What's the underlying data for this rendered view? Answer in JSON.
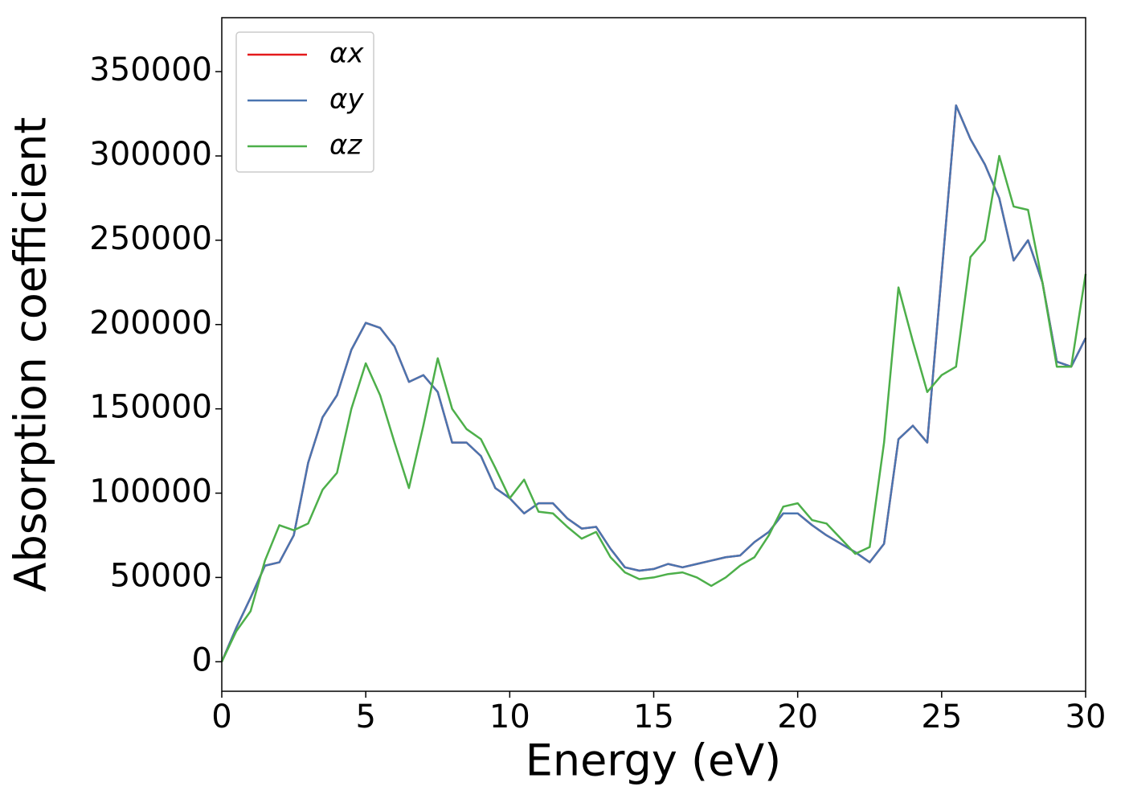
{
  "chart_data": {
    "type": "line",
    "xlabel": "Energy (eV)",
    "ylabel": "Absorption coefficient",
    "x": [
      0,
      0.5,
      1,
      1.5,
      2,
      2.5,
      3,
      3.5,
      4,
      4.5,
      5,
      5.5,
      6,
      6.5,
      7,
      7.5,
      8,
      8.5,
      9,
      9.5,
      10,
      10.5,
      11,
      11.5,
      12,
      12.5,
      13,
      13.5,
      14,
      14.5,
      15,
      15.5,
      16,
      16.5,
      17,
      17.5,
      18,
      18.5,
      19,
      19.5,
      20,
      20.5,
      21,
      21.5,
      22,
      22.5,
      23,
      23.5,
      24,
      24.5,
      25,
      25.5,
      26,
      26.5,
      27,
      27.5,
      28,
      28.5,
      29,
      29.5,
      30
    ],
    "series": [
      {
        "name": "αx",
        "color": "#e41a1c",
        "values": [
          0,
          20000,
          38000,
          57000,
          59000,
          75000,
          118000,
          145000,
          158000,
          185000,
          201000,
          198000,
          187000,
          166000,
          170000,
          160000,
          130000,
          130000,
          122000,
          103000,
          97000,
          88000,
          94000,
          94000,
          85000,
          79000,
          80000,
          67000,
          56000,
          54000,
          55000,
          58000,
          56000,
          58000,
          60000,
          62000,
          63000,
          71000,
          77000,
          88000,
          88000,
          81000,
          75000,
          70000,
          65000,
          59000,
          70000,
          132000,
          140000,
          130000,
          230000,
          330000,
          310000,
          295000,
          275000,
          238000,
          250000,
          225000,
          178000,
          175000,
          192000
        ]
      },
      {
        "name": "αy",
        "color": "#4a75b0",
        "values": [
          0,
          20000,
          38000,
          57000,
          59000,
          75000,
          118000,
          145000,
          158000,
          185000,
          201000,
          198000,
          187000,
          166000,
          170000,
          160000,
          130000,
          130000,
          122000,
          103000,
          97000,
          88000,
          94000,
          94000,
          85000,
          79000,
          80000,
          67000,
          56000,
          54000,
          55000,
          58000,
          56000,
          58000,
          60000,
          62000,
          63000,
          71000,
          77000,
          88000,
          88000,
          81000,
          75000,
          70000,
          65000,
          59000,
          70000,
          132000,
          140000,
          130000,
          230000,
          330000,
          310000,
          295000,
          275000,
          238000,
          250000,
          225000,
          178000,
          175000,
          192000
        ]
      },
      {
        "name": "αz",
        "color": "#4daf4a",
        "values": [
          0,
          18000,
          30000,
          60000,
          81000,
          78000,
          82000,
          102000,
          112000,
          150000,
          177000,
          158000,
          130000,
          103000,
          140000,
          180000,
          150000,
          138000,
          132000,
          115000,
          97000,
          108000,
          89000,
          88000,
          80000,
          73000,
          77000,
          62000,
          53000,
          49000,
          50000,
          52000,
          53000,
          50000,
          45000,
          50000,
          57000,
          62000,
          75000,
          92000,
          94000,
          84000,
          82000,
          73000,
          64000,
          68000,
          130000,
          222000,
          190000,
          160000,
          170000,
          175000,
          240000,
          250000,
          300000,
          270000,
          268000,
          225000,
          175000,
          175000,
          230000
        ]
      }
    ],
    "xlim": [
      0,
      30
    ],
    "xticks": [
      0,
      5,
      10,
      15,
      20,
      25,
      30
    ],
    "ylim": [
      -17500,
      382000
    ],
    "yticks": [
      0,
      50000,
      100000,
      150000,
      200000,
      250000,
      300000,
      350000
    ],
    "legend": "upper left",
    "grid": false
  }
}
